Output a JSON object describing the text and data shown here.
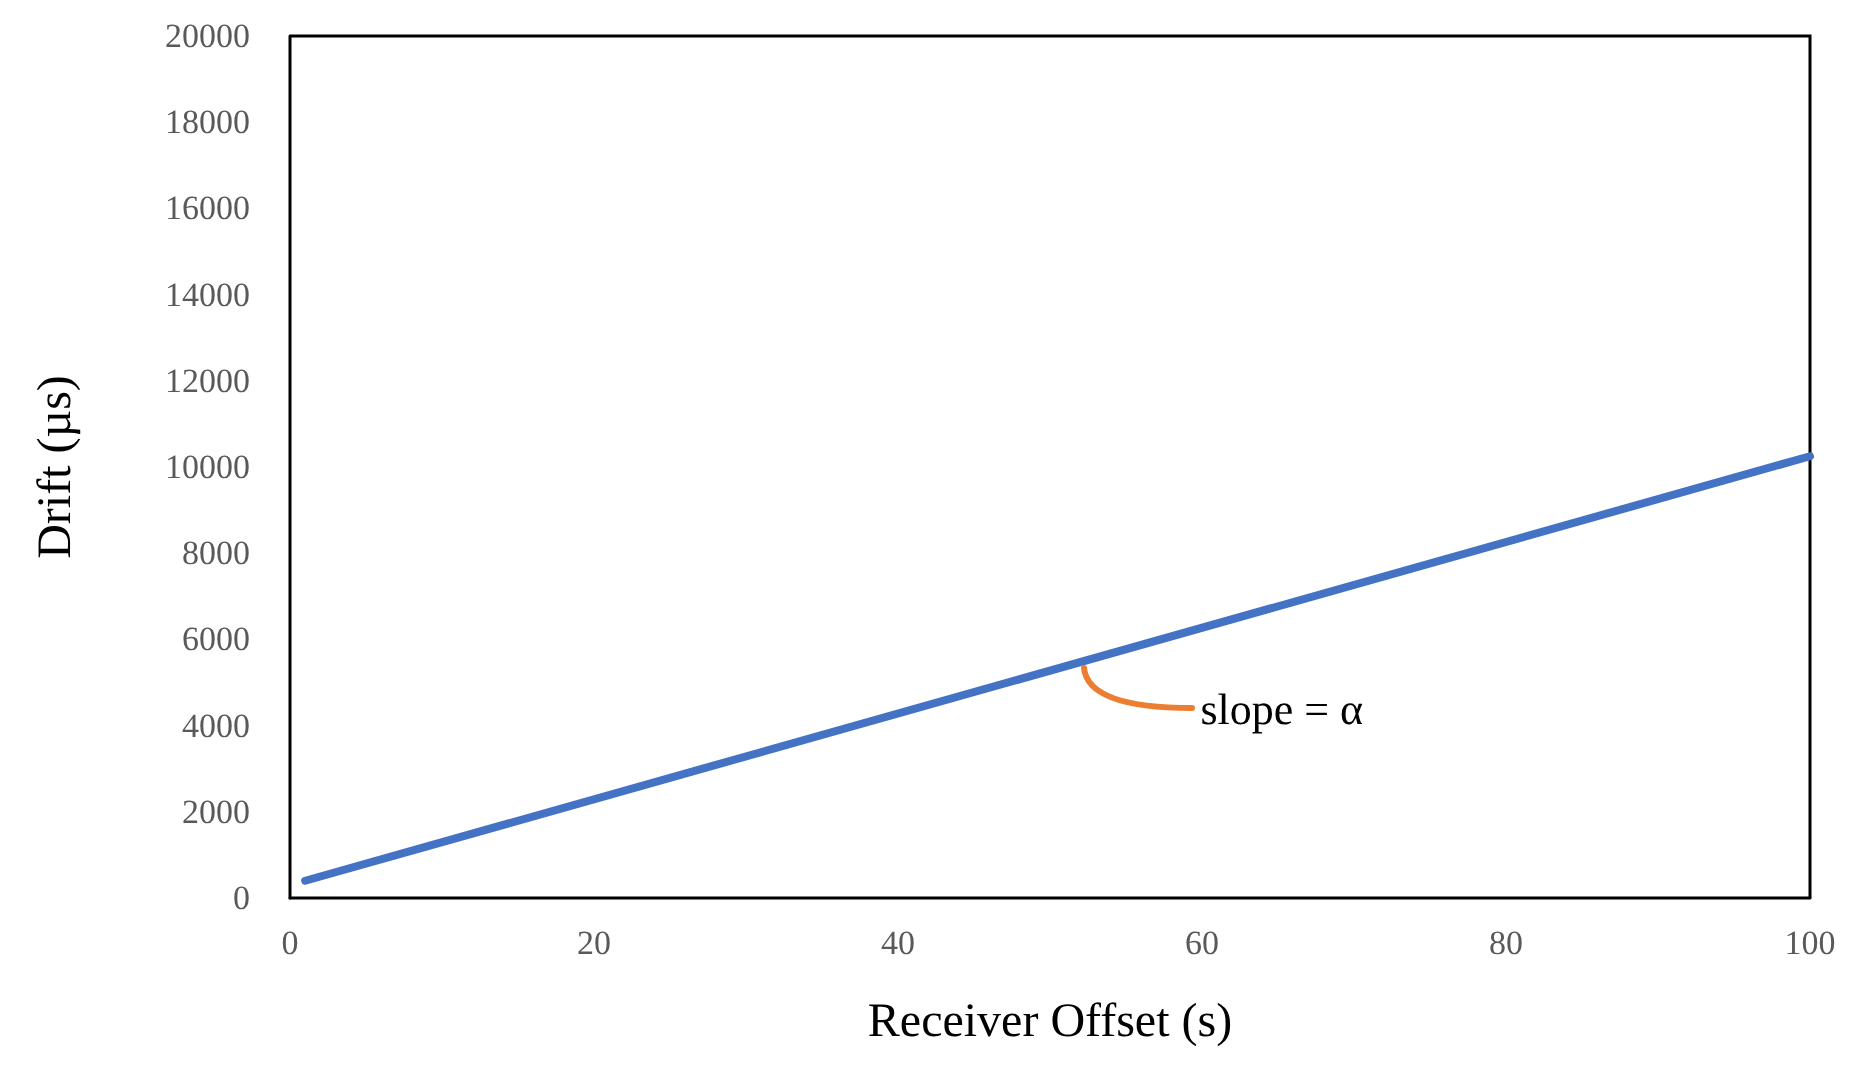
{
  "chart_data": {
    "type": "line",
    "xlabel": "Receiver Offset (s)",
    "ylabel": "Drift (µs)",
    "x": [
      1,
      100
    ],
    "series": [
      {
        "color": "#4472c4",
        "values": [
          400,
          10250
        ]
      }
    ],
    "xlim": [
      0,
      100
    ],
    "xticks": [
      0,
      20,
      40,
      60,
      80,
      100
    ],
    "ylim": [
      0,
      20000
    ],
    "yticks": [
      0,
      2000,
      4000,
      6000,
      8000,
      10000,
      12000,
      14000,
      16000,
      18000,
      20000
    ],
    "grid": false,
    "marker": "none",
    "line_style": "solid",
    "annotations": [
      {
        "text": "slope = α",
        "x": 52,
        "y": 5500
      }
    ]
  }
}
